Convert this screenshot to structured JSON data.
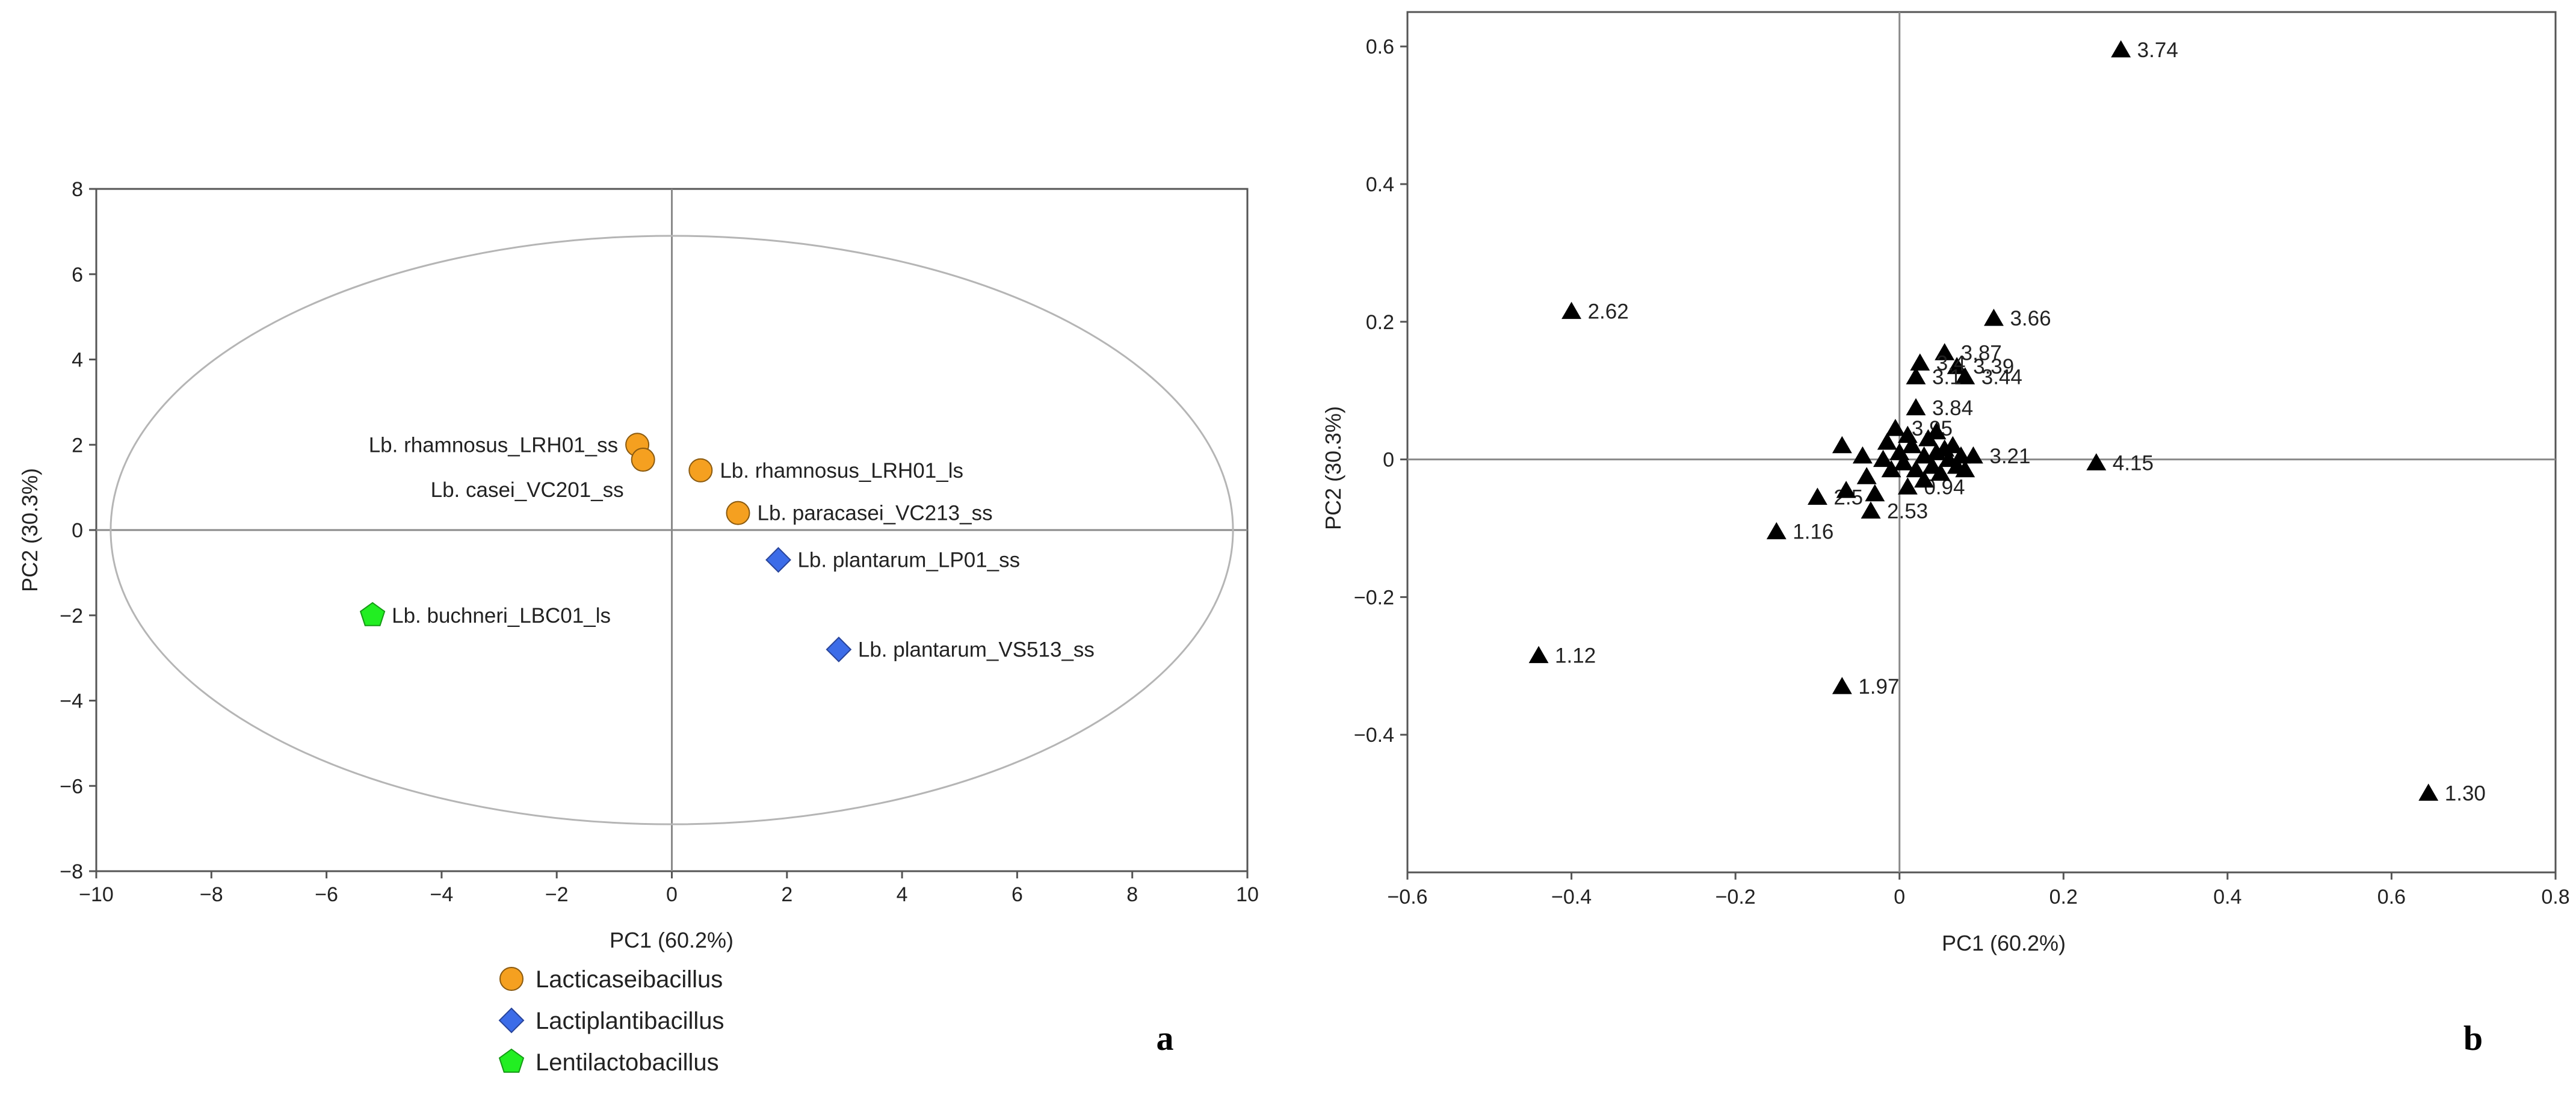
{
  "colors": {
    "Lacticaseibacillus": "#F5A020",
    "Lactiplantibacillus": "#3C6CE8",
    "Lentilactobacillus": "#22EE22",
    "loadings": "#000000"
  },
  "chart_data": [
    {
      "panel": "a",
      "type": "scatter",
      "xlabel": "PC1 (60.2%)",
      "ylabel": "PC2 (30.3%)",
      "xlim": [
        -10,
        10
      ],
      "ylim": [
        -8,
        8
      ],
      "xticks": [
        -10,
        -8,
        -6,
        -4,
        -2,
        0,
        2,
        4,
        6,
        8,
        10
      ],
      "yticks": [
        -8,
        -6,
        -4,
        -2,
        0,
        2,
        4,
        6,
        8
      ],
      "ellipse": {
        "cx": 0,
        "cy": 0,
        "rx": 9.75,
        "ry": 6.9
      },
      "legend": [
        {
          "label": "Lacticaseibacillus",
          "marker": "circle",
          "color": "#F5A020"
        },
        {
          "label": "Lactiplantibacillus",
          "marker": "diamond",
          "color": "#3C6CE8"
        },
        {
          "label": "Lentilactobacillus",
          "marker": "pentagon",
          "color": "#22EE22"
        }
      ],
      "points": [
        {
          "label": "Lb. rhamnosus_LRH01_ss",
          "x": -0.6,
          "y": 2.0,
          "group": "Lacticaseibacillus",
          "pos": "left"
        },
        {
          "label": "Lb. casei_VC201_ss",
          "x": -0.5,
          "y": 1.65,
          "group": "Lacticaseibacillus",
          "pos": "below-left"
        },
        {
          "label": "Lb. rhamnosus_LRH01_ls",
          "x": 0.5,
          "y": 1.4,
          "group": "Lacticaseibacillus",
          "pos": "right"
        },
        {
          "label": "Lb. paracasei_VC213_ss",
          "x": 1.15,
          "y": 0.4,
          "group": "Lacticaseibacillus",
          "pos": "right"
        },
        {
          "label": "Lb. plantarum_LP01_ss",
          "x": 1.85,
          "y": -0.7,
          "group": "Lactiplantibacillus",
          "pos": "right"
        },
        {
          "label": "Lb. plantarum_VS513_ss",
          "x": 2.9,
          "y": -2.8,
          "group": "Lactiplantibacillus",
          "pos": "right"
        },
        {
          "label": "Lb. buchneri_LBC01_ls",
          "x": -5.2,
          "y": -2.0,
          "group": "Lentilactobacillus",
          "pos": "right"
        }
      ]
    },
    {
      "panel": "b",
      "type": "scatter",
      "xlabel": "PC1 (60.2%)",
      "ylabel": "PC2 (30.3%)",
      "xlim": [
        -0.6,
        0.8
      ],
      "ylim": [
        -0.6,
        0.65
      ],
      "xticks": [
        -0.6,
        -0.4,
        -0.2,
        0,
        0.2,
        0.4,
        0.6,
        0.8
      ],
      "yticks": [
        -0.4,
        -0.2,
        0,
        0.2,
        0.4,
        0.6
      ],
      "points": [
        {
          "label": "3.74",
          "x": 0.27,
          "y": 0.595
        },
        {
          "label": "2.62",
          "x": -0.4,
          "y": 0.215
        },
        {
          "label": "3.66",
          "x": 0.115,
          "y": 0.205
        },
        {
          "label": "3.87",
          "x": 0.055,
          "y": 0.155
        },
        {
          "label": "3.39",
          "x": 0.07,
          "y": 0.135
        },
        {
          "label": "3.44",
          "x": 0.08,
          "y": 0.12
        },
        {
          "label": "3.4",
          "x": 0.025,
          "y": 0.14
        },
        {
          "label": "3.1",
          "x": 0.02,
          "y": 0.12
        },
        {
          "label": "3.84",
          "x": 0.02,
          "y": 0.075
        },
        {
          "label": "3.95",
          "x": -0.005,
          "y": 0.045
        },
        {
          "label": "3.21",
          "x": 0.09,
          "y": 0.005
        },
        {
          "label": "4.15",
          "x": 0.24,
          "y": -0.005
        },
        {
          "label": "0.94",
          "x": 0.01,
          "y": -0.04
        },
        {
          "label": "2.53",
          "x": -0.035,
          "y": -0.075
        },
        {
          "label": "2.5",
          "x": -0.1,
          "y": -0.055
        },
        {
          "label": "1.16",
          "x": -0.15,
          "y": -0.105
        },
        {
          "label": "1.12",
          "x": -0.44,
          "y": -0.285
        },
        {
          "label": "1.97",
          "x": -0.07,
          "y": -0.33
        },
        {
          "label": "1.30",
          "x": 0.645,
          "y": -0.485
        },
        {
          "label": "",
          "x": -0.07,
          "y": 0.02
        },
        {
          "label": "",
          "x": -0.065,
          "y": -0.045
        },
        {
          "label": "",
          "x": -0.04,
          "y": -0.025
        },
        {
          "label": "",
          "x": -0.02,
          "y": 0.0
        },
        {
          "label": "",
          "x": -0.01,
          "y": -0.015
        },
        {
          "label": "",
          "x": 0.0,
          "y": 0.01
        },
        {
          "label": "",
          "x": 0.005,
          "y": -0.005
        },
        {
          "label": "",
          "x": 0.015,
          "y": 0.02
        },
        {
          "label": "",
          "x": 0.02,
          "y": -0.015
        },
        {
          "label": "",
          "x": 0.03,
          "y": 0.005
        },
        {
          "label": "",
          "x": 0.035,
          "y": 0.03
        },
        {
          "label": "",
          "x": 0.04,
          "y": -0.01
        },
        {
          "label": "",
          "x": 0.045,
          "y": 0.01
        },
        {
          "label": "",
          "x": 0.05,
          "y": -0.02
        },
        {
          "label": "",
          "x": 0.055,
          "y": 0.015
        },
        {
          "label": "",
          "x": 0.06,
          "y": 0.0
        },
        {
          "label": "",
          "x": 0.065,
          "y": 0.02
        },
        {
          "label": "",
          "x": 0.07,
          "y": -0.01
        },
        {
          "label": "",
          "x": 0.075,
          "y": 0.005
        },
        {
          "label": "",
          "x": 0.08,
          "y": -0.015
        },
        {
          "label": "",
          "x": -0.015,
          "y": 0.025
        },
        {
          "label": "",
          "x": 0.01,
          "y": 0.035
        },
        {
          "label": "",
          "x": -0.03,
          "y": -0.05
        },
        {
          "label": "",
          "x": 0.03,
          "y": -0.03
        },
        {
          "label": "",
          "x": -0.045,
          "y": 0.005
        },
        {
          "label": "",
          "x": 0.045,
          "y": 0.04
        }
      ]
    }
  ]
}
